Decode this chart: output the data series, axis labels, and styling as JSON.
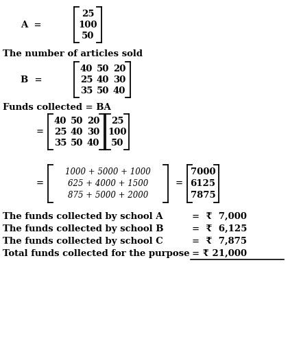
{
  "bg_color": "#ffffff",
  "fig_width": 4.2,
  "fig_height": 5.23,
  "dpi": 100,
  "fs": 9.5,
  "fs_exp": 8.5,
  "arm": 0.013,
  "lw": 1.3,
  "A_data": [
    "25",
    "100",
    "50"
  ],
  "B_data": [
    [
      "40",
      "50",
      "20"
    ],
    [
      "25",
      "40",
      "30"
    ],
    [
      "35",
      "50",
      "40"
    ]
  ],
  "exp_data": [
    "1000 + 5000 + 1000",
    "625 + 4000 + 1500",
    "875 + 5000 + 2000"
  ],
  "res_data": [
    "7000",
    "6125",
    "7875"
  ],
  "summary": [
    [
      "The funds collected by school A",
      "=  ₹  7,000",
      false
    ],
    [
      "The funds collected by school B",
      "=  ₹  6,125",
      false
    ],
    [
      "The funds collected by school C",
      "=  ₹  7,875",
      false
    ],
    [
      "Total funds collected for the purpose",
      "= ₹ 21,000",
      true
    ]
  ]
}
